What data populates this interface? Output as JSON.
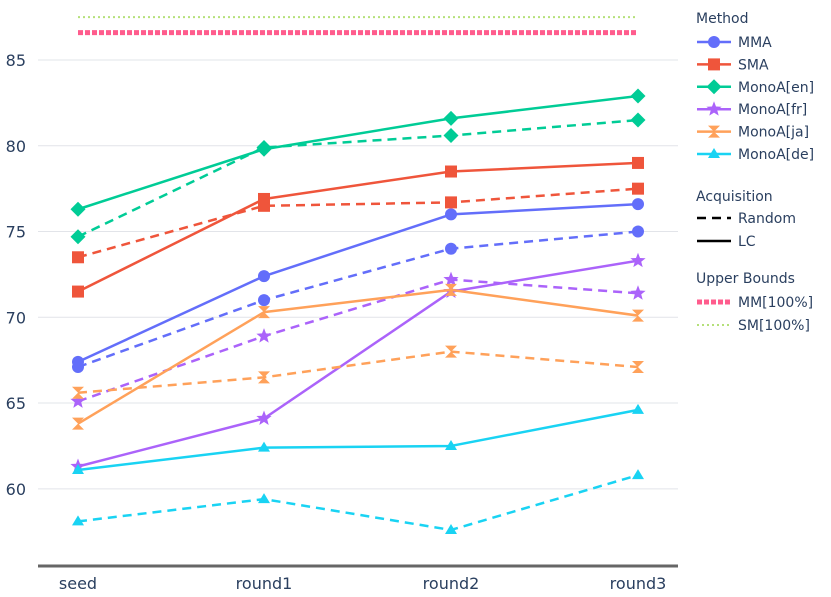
{
  "chart_data": {
    "type": "line",
    "categories": [
      "seed",
      "round1",
      "round2",
      "round3"
    ],
    "ylim": [
      55.5,
      88.5
    ],
    "yticks": [
      60,
      65,
      70,
      75,
      80,
      85
    ],
    "grid": true,
    "legend_placement": "right",
    "upper_bounds": [
      {
        "name": "MM[100%]",
        "value": 86.6,
        "color": "#ff5c8d",
        "style": "dotted-thick"
      },
      {
        "name": "SM[100%]",
        "value": 87.5,
        "color": "#b5e07a",
        "style": "dotted-thin"
      }
    ],
    "series": [
      {
        "name": "MMA",
        "color": "#636efa",
        "marker": "circle",
        "random": [
          67.1,
          71.0,
          74.0,
          75.0
        ],
        "lc": [
          67.4,
          72.4,
          76.0,
          76.6
        ]
      },
      {
        "name": "SMA",
        "color": "#ef553b",
        "marker": "square",
        "random": [
          73.5,
          76.5,
          76.7,
          77.5
        ],
        "lc": [
          71.5,
          76.9,
          78.5,
          79.0
        ]
      },
      {
        "name": "MonoA[en]",
        "color": "#00cc96",
        "marker": "diamond",
        "random": [
          74.7,
          79.9,
          80.6,
          81.5
        ],
        "lc": [
          76.3,
          79.8,
          81.6,
          82.9
        ]
      },
      {
        "name": "MonoA[fr]",
        "color": "#ab63fa",
        "marker": "star",
        "random": [
          65.1,
          68.9,
          72.2,
          71.4
        ],
        "lc": [
          61.3,
          64.1,
          71.5,
          73.3
        ]
      },
      {
        "name": "MonoA[ja]",
        "color": "#ffa15a",
        "marker": "hourglass",
        "random": [
          65.6,
          66.5,
          68.0,
          67.1
        ],
        "lc": [
          63.8,
          70.3,
          71.6,
          70.1
        ]
      },
      {
        "name": "MonoA[de]",
        "color": "#19d3f3",
        "marker": "triangle",
        "random": [
          58.1,
          59.4,
          57.6,
          60.8
        ],
        "lc": [
          61.1,
          62.4,
          62.5,
          64.6
        ]
      }
    ]
  },
  "legend": {
    "method_title": "Method",
    "acquisition_title": "Acquisition",
    "acquisition_items": [
      {
        "label": "Random",
        "dash": "dashed"
      },
      {
        "label": "LC",
        "dash": "solid"
      }
    ],
    "bounds_title": "Upper Bounds"
  }
}
